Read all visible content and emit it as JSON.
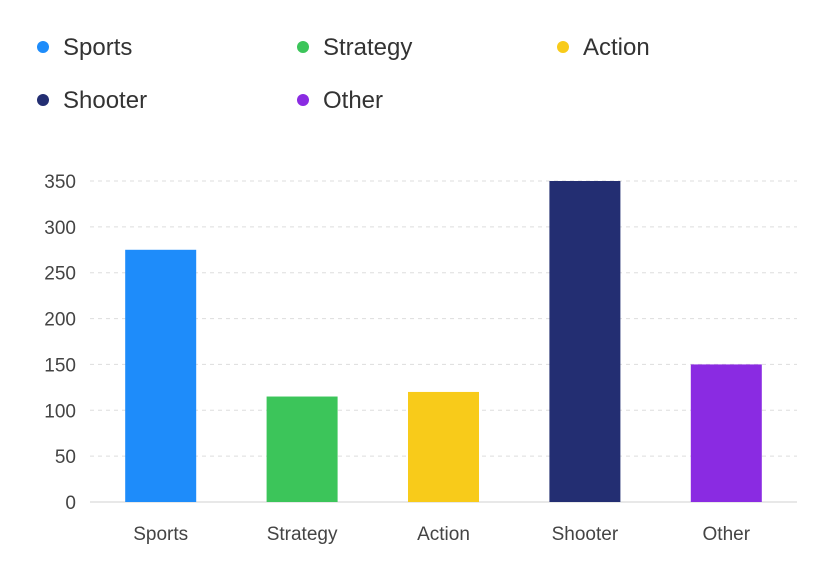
{
  "chart_data": {
    "type": "bar",
    "categories": [
      "Sports",
      "Strategy",
      "Action",
      "Shooter",
      "Other"
    ],
    "values": [
      275,
      115,
      120,
      350,
      150
    ],
    "colors": [
      "#1e8cfa",
      "#3cc55a",
      "#f8cb1a",
      "#232e72",
      "#8a2be2"
    ],
    "legend": {
      "position": "top",
      "items": [
        {
          "label": "Sports",
          "color": "#1e8cfa"
        },
        {
          "label": "Strategy",
          "color": "#3cc55a"
        },
        {
          "label": "Action",
          "color": "#f8cb1a"
        },
        {
          "label": "Shooter",
          "color": "#232e72"
        },
        {
          "label": "Other",
          "color": "#8a2be2"
        }
      ]
    },
    "y_ticks": [
      0,
      50,
      100,
      150,
      200,
      250,
      300,
      350
    ],
    "ylim": [
      0,
      350
    ],
    "grid": true,
    "title": "",
    "xlabel": "",
    "ylabel": ""
  }
}
